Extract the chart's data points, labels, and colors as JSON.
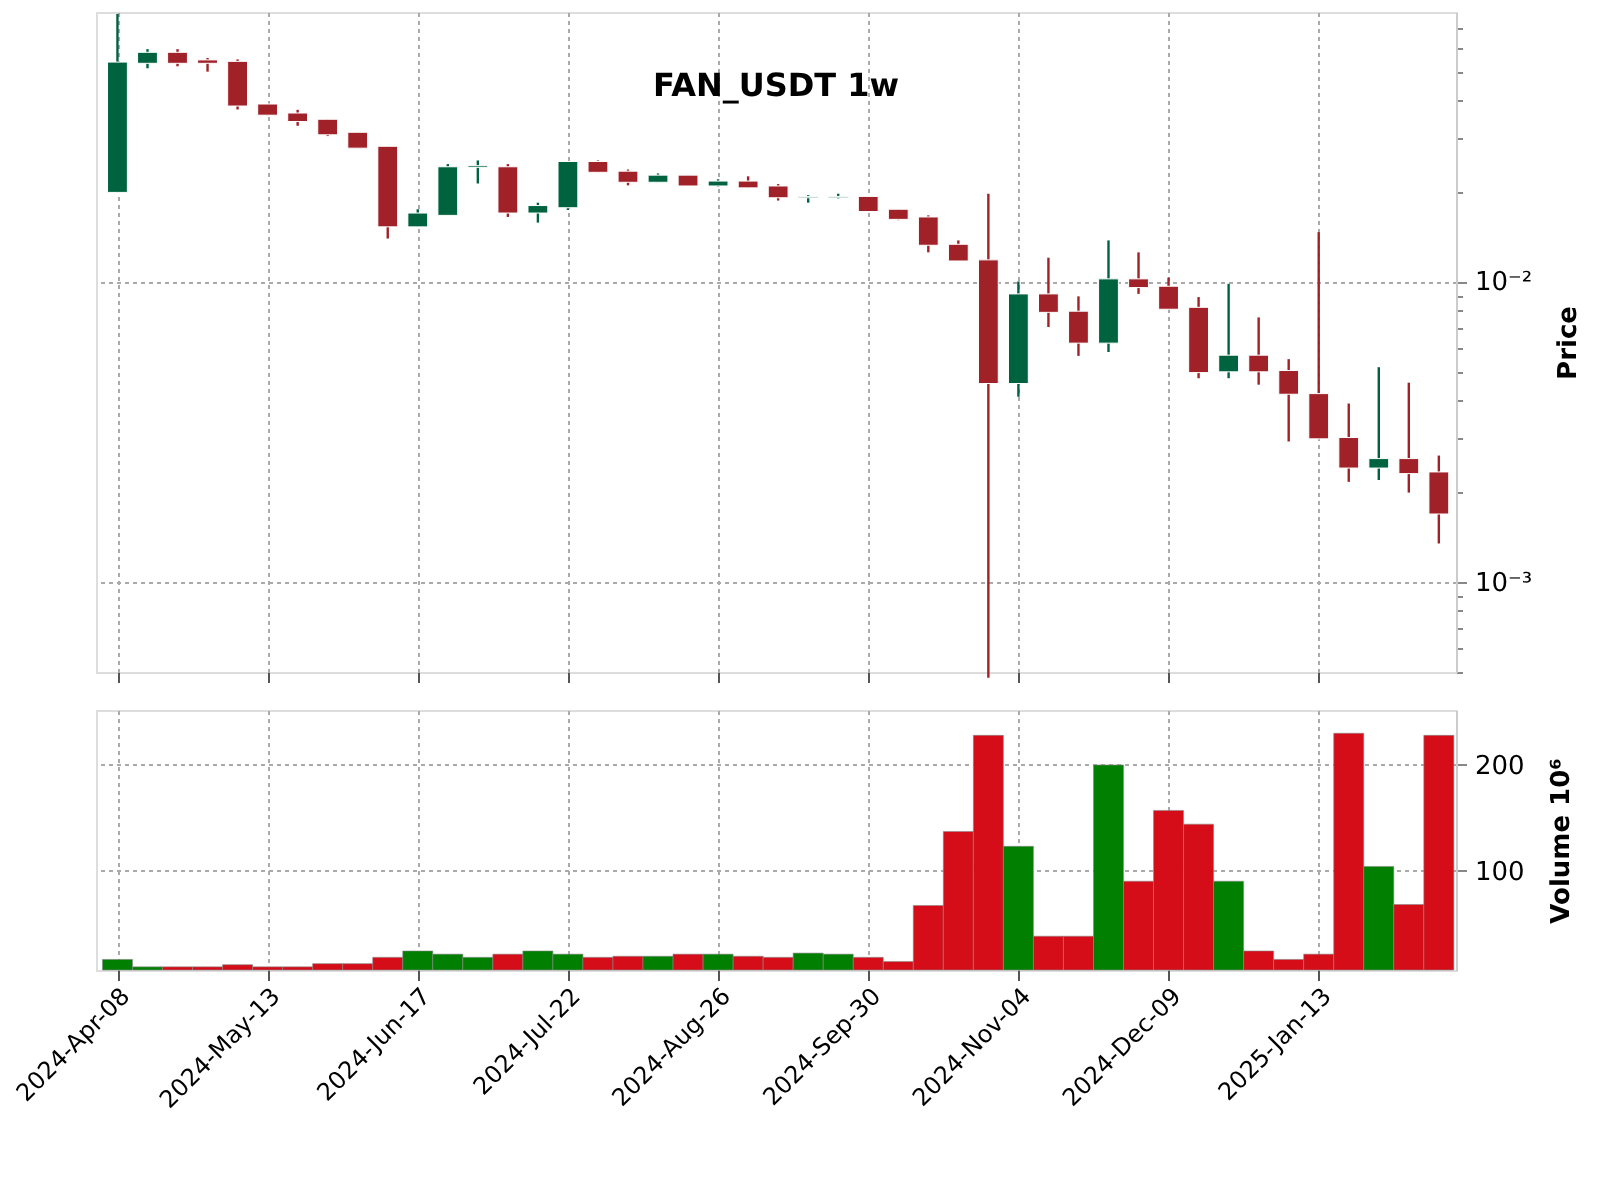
{
  "chart_data": [
    {
      "type": "candlestick",
      "title": "FAN_USDT 1w",
      "ylabel": "Price",
      "log": true,
      "grid": true,
      "tick_labels": "y",
      "x": [
        "2024-04-08",
        "2024-04-15",
        "2024-04-22",
        "2024-04-29",
        "2024-05-06",
        "2024-05-13",
        "2024-05-20",
        "2024-05-27",
        "2024-06-03",
        "2024-06-10",
        "2024-06-17",
        "2024-06-24",
        "2024-07-01",
        "2024-07-08",
        "2024-07-15",
        "2024-07-22",
        "2024-07-29",
        "2024-08-05",
        "2024-08-12",
        "2024-08-19",
        "2024-08-26",
        "2024-09-02",
        "2024-09-09",
        "2024-09-16",
        "2024-09-23",
        "2024-09-30",
        "2024-10-07",
        "2024-10-14",
        "2024-10-21",
        "2024-10-28",
        "2024-11-04",
        "2024-11-11",
        "2024-11-18",
        "2024-11-25",
        "2024-12-02",
        "2024-12-09",
        "2024-12-16",
        "2024-12-23",
        "2024-12-30",
        "2025-01-06",
        "2025-01-13",
        "2025-01-20",
        "2025-01-27",
        "2025-02-03",
        "2025-02-10"
      ],
      "ohlc": [
        [
          0.0198,
          0.0778,
          0.0198,
          0.0538
        ],
        [
          0.0533,
          0.0594,
          0.0513,
          0.058
        ],
        [
          0.058,
          0.0594,
          0.0521,
          0.0533
        ],
        [
          0.0547,
          0.0555,
          0.05,
          0.0533
        ],
        [
          0.0541,
          0.0549,
          0.0374,
          0.0384
        ],
        [
          0.039,
          0.039,
          0.0358,
          0.0358
        ],
        [
          0.0364,
          0.0373,
          0.033,
          0.0341
        ],
        [
          0.0347,
          0.0347,
          0.0305,
          0.0308
        ],
        [
          0.0314,
          0.0314,
          0.0278,
          0.0278
        ],
        [
          0.0282,
          0.0282,
          0.0139,
          0.0152
        ],
        [
          0.0152,
          0.0174,
          0.0152,
          0.0169
        ],
        [
          0.0166,
          0.0246,
          0.0166,
          0.0241
        ],
        [
          0.024,
          0.0253,
          0.0212,
          0.0243
        ],
        [
          0.0241,
          0.0246,
          0.0164,
          0.0169
        ],
        [
          0.0169,
          0.0183,
          0.0157,
          0.0179
        ],
        [
          0.0176,
          0.0251,
          0.0173,
          0.0251
        ],
        [
          0.0251,
          0.0253,
          0.0231,
          0.0231
        ],
        [
          0.0233,
          0.0236,
          0.0209,
          0.0214
        ],
        [
          0.0214,
          0.0229,
          0.0214,
          0.0226
        ],
        [
          0.0226,
          0.0226,
          0.0208,
          0.0208
        ],
        [
          0.0208,
          0.0219,
          0.0207,
          0.0216
        ],
        [
          0.0216,
          0.0224,
          0.0205,
          0.0205
        ],
        [
          0.0208,
          0.0211,
          0.0186,
          0.019
        ],
        [
          0.019,
          0.0194,
          0.0183,
          0.0192
        ],
        [
          0.019,
          0.0196,
          0.0189,
          0.0192
        ],
        [
          0.0192,
          0.0192,
          0.0171,
          0.0171
        ],
        [
          0.0174,
          0.0174,
          0.016,
          0.0161
        ],
        [
          0.0164,
          0.0166,
          0.0125,
          0.0132
        ],
        [
          0.0133,
          0.0137,
          0.0117,
          0.0117
        ],
        [
          0.0118,
          0.0196,
          0.000478,
          0.00457
        ],
        [
          0.00457,
          0.01,
          0.00413,
          0.00909
        ],
        [
          0.00909,
          0.012,
          0.00705,
          0.00789
        ],
        [
          0.00796,
          0.00892,
          0.00565,
          0.00623
        ],
        [
          0.00623,
          0.0137,
          0.00582,
          0.0102
        ],
        [
          0.0102,
          0.0125,
          0.00909,
          0.00954
        ],
        [
          0.00964,
          0.0103,
          0.00808,
          0.00808
        ],
        [
          0.0082,
          0.00887,
          0.00476,
          0.00497
        ],
        [
          0.005,
          0.00982,
          0.00476,
          0.00568
        ],
        [
          0.00568,
          0.00759,
          0.00453,
          0.005
        ],
        [
          0.00505,
          0.00551,
          0.00293,
          0.00421
        ],
        [
          0.00423,
          0.0146,
          0.00299,
          0.00299
        ],
        [
          0.00302,
          0.00392,
          0.00215,
          0.00239
        ],
        [
          0.00239,
          0.00518,
          0.00218,
          0.00257
        ],
        [
          0.00257,
          0.0046,
          0.00198,
          0.00229
        ],
        [
          0.00232,
          0.00263,
          0.00134,
          0.00168
        ]
      ],
      "colors": [
        "#006340",
        "#006340",
        "#a02128",
        "#a02128",
        "#a02128",
        "#a02128",
        "#a02128",
        "#a02128",
        "#a02128",
        "#a02128",
        "#006340",
        "#006340",
        "#006340",
        "#a02128",
        "#006340",
        "#006340",
        "#a02128",
        "#a02128",
        "#006340",
        "#a02128",
        "#006340",
        "#a02128",
        "#a02128",
        "#006340",
        "#006340",
        "#a02128",
        "#a02128",
        "#a02128",
        "#a02128",
        "#a02128",
        "#006340",
        "#a02128",
        "#a02128",
        "#006340",
        "#a02128",
        "#a02128",
        "#a02128",
        "#006340",
        "#a02128",
        "#a02128",
        "#a02128",
        "#a02128",
        "#006340",
        "#a02128",
        "#a02128"
      ],
      "xlim": [
        "2024-04-03",
        "2025-02-14"
      ],
      "xticks": [
        {
          "value": "2024-04-08",
          "label": null
        },
        {
          "value": "2024-05-13",
          "label": null
        },
        {
          "value": "2024-06-17",
          "label": null
        },
        {
          "value": "2024-07-22",
          "label": null
        },
        {
          "value": "2024-08-26",
          "label": null
        },
        {
          "value": "2024-09-30",
          "label": null
        },
        {
          "value": "2024-11-04",
          "label": null
        },
        {
          "value": "2024-12-09",
          "label": null
        },
        {
          "value": "2025-01-13",
          "label": null
        }
      ],
      "ylim": [
        0.0005,
        0.079
      ],
      "yticks": [
        {
          "value": 0.0005,
          "label": null
        },
        {
          "value": 0.0006,
          "label": null
        },
        {
          "value": 0.0007,
          "label": null
        },
        {
          "value": 0.0008,
          "label": null
        },
        {
          "value": 0.0009,
          "label": null
        },
        {
          "value": 0.001,
          "label": "10⁻³"
        },
        {
          "value": 0.002,
          "label": null
        },
        {
          "value": 0.003,
          "label": null
        },
        {
          "value": 0.004,
          "label": null
        },
        {
          "value": 0.005,
          "label": null
        },
        {
          "value": 0.006,
          "label": null
        },
        {
          "value": 0.007,
          "label": null
        },
        {
          "value": 0.008,
          "label": null
        },
        {
          "value": 0.009,
          "label": null
        },
        {
          "value": 0.01,
          "label": "10⁻²"
        },
        {
          "value": 0.02,
          "label": null
        },
        {
          "value": 0.03,
          "label": null
        },
        {
          "value": 0.04,
          "label": null
        },
        {
          "value": 0.05,
          "label": null
        },
        {
          "value": 0.06,
          "label": null
        },
        {
          "value": 0.07,
          "label": null
        }
      ]
    },
    {
      "type": "bar",
      "ylabel": "Volume  10⁶",
      "grid": true,
      "x": [
        "2024-04-08",
        "2024-04-15",
        "2024-04-22",
        "2024-04-29",
        "2024-05-06",
        "2024-05-13",
        "2024-05-20",
        "2024-05-27",
        "2024-06-03",
        "2024-06-10",
        "2024-06-17",
        "2024-06-24",
        "2024-07-01",
        "2024-07-08",
        "2024-07-15",
        "2024-07-22",
        "2024-07-29",
        "2024-08-05",
        "2024-08-12",
        "2024-08-19",
        "2024-08-26",
        "2024-09-02",
        "2024-09-09",
        "2024-09-16",
        "2024-09-23",
        "2024-09-30",
        "2024-10-07",
        "2024-10-14",
        "2024-10-21",
        "2024-10-28",
        "2024-11-04",
        "2024-11-11",
        "2024-11-18",
        "2024-11-25",
        "2024-12-02",
        "2024-12-09",
        "2024-12-16",
        "2024-12-23",
        "2024-12-30",
        "2025-01-06",
        "2025-01-13",
        "2025-01-20",
        "2025-01-27",
        "2025-02-03",
        "2025-02-10"
      ],
      "values": [
        16,
        9,
        9,
        9,
        11,
        9,
        9,
        12,
        12,
        18,
        24,
        21,
        18,
        21,
        24,
        21,
        18,
        19,
        19,
        21,
        21,
        19,
        18,
        22,
        21,
        18,
        14,
        67,
        137,
        228,
        123,
        38,
        38,
        200,
        90,
        157,
        144,
        90,
        24,
        16,
        21,
        230,
        104,
        68,
        228
      ],
      "colors": [
        "#007f00",
        "#007f00",
        "#d50d18",
        "#d50d18",
        "#d50d18",
        "#d50d18",
        "#d50d18",
        "#d50d18",
        "#d50d18",
        "#d50d18",
        "#007f00",
        "#007f00",
        "#007f00",
        "#d50d18",
        "#007f00",
        "#007f00",
        "#d50d18",
        "#d50d18",
        "#007f00",
        "#d50d18",
        "#007f00",
        "#d50d18",
        "#d50d18",
        "#007f00",
        "#007f00",
        "#d50d18",
        "#d50d18",
        "#d50d18",
        "#d50d18",
        "#d50d18",
        "#007f00",
        "#d50d18",
        "#d50d18",
        "#007f00",
        "#d50d18",
        "#d50d18",
        "#d50d18",
        "#007f00",
        "#d50d18",
        "#d50d18",
        "#d50d18",
        "#d50d18",
        "#007f00",
        "#d50d18",
        "#d50d18"
      ],
      "xlim": [
        "2024-04-03",
        "2025-02-14"
      ],
      "xticks": [
        {
          "value": "2024-04-08",
          "label": "2024-Apr-08"
        },
        {
          "value": "2024-05-13",
          "label": "2024-May-13"
        },
        {
          "value": "2024-06-17",
          "label": "2024-Jun-17"
        },
        {
          "value": "2024-07-22",
          "label": "2024-Jul-22"
        },
        {
          "value": "2024-08-26",
          "label": "2024-Aug-26"
        },
        {
          "value": "2024-09-30",
          "label": "2024-Sep-30"
        },
        {
          "value": "2024-11-04",
          "label": "2024-Nov-04"
        },
        {
          "value": "2024-12-09",
          "label": "2024-Dec-09"
        },
        {
          "value": "2025-01-13",
          "label": "2025-Jan-13"
        }
      ],
      "ylim": [
        6,
        252
      ],
      "yticks": [
        100,
        200
      ]
    }
  ]
}
